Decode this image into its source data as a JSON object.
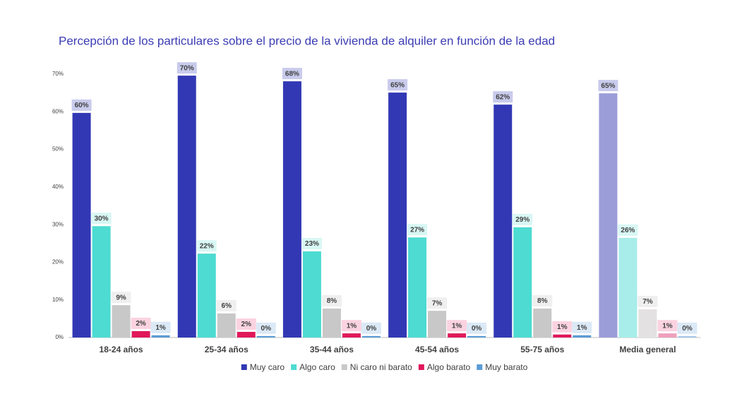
{
  "chart_data": {
    "type": "bar",
    "title": "Percepción de los particulares sobre el precio de la vivienda de alquiler en función de la edad",
    "categories": [
      "18-24 años",
      "25-34 años",
      "35-44 años",
      "45-54 años",
      "55-75 años",
      "Media general"
    ],
    "ylim": [
      0,
      70
    ],
    "yticks": [
      {
        "value": 0,
        "label": "0%"
      },
      {
        "value": 10,
        "label": "10%"
      },
      {
        "value": 20,
        "label": "20%"
      },
      {
        "value": 30,
        "label": "30%"
      },
      {
        "value": 40,
        "label": "40%"
      },
      {
        "value": 50,
        "label": "50%"
      },
      {
        "value": 60,
        "label": "60%"
      },
      {
        "value": 70,
        "label": "70%"
      }
    ],
    "grid": false,
    "legend": "bottom",
    "series": [
      {
        "name": "Muy caro",
        "color": "#3238b4",
        "colors": [
          "#3238b4",
          "#3238b4",
          "#3238b4",
          "#3238b4",
          "#3238b4",
          "#9b9dd9"
        ],
        "label_background": "#c9cbec",
        "values": [
          59.7,
          69.6,
          68.1,
          65.1,
          61.9,
          64.9
        ],
        "value_labels": [
          "60%",
          "70%",
          "68%",
          "65%",
          "62%",
          "65%"
        ]
      },
      {
        "name": "Algo caro",
        "color": "#4ddbd2",
        "colors": [
          "#4ddbd2",
          "#4ddbd2",
          "#4ddbd2",
          "#4ddbd2",
          "#4ddbd2",
          "#a8ede9"
        ],
        "label_background": "#d8f7f4",
        "values": [
          29.6,
          22.3,
          22.9,
          26.6,
          29.3,
          26.5
        ],
        "value_labels": [
          "30%",
          "22%",
          "23%",
          "27%",
          "29%",
          "26%"
        ]
      },
      {
        "name": "Ni caro ni barato",
        "color": "#c8c8c8",
        "colors": [
          "#c8c8c8",
          "#c8c8c8",
          "#c8c8c8",
          "#c8c8c8",
          "#c8c8c8",
          "#e3e1e1"
        ],
        "label_background": "#efefef",
        "values": [
          8.6,
          6.4,
          7.7,
          7.1,
          7.7,
          7.5
        ],
        "value_labels": [
          "9%",
          "6%",
          "8%",
          "7%",
          "8%",
          "7%"
        ]
      },
      {
        "name": "Algo barato",
        "color": "#e0185a",
        "colors": [
          "#e0185a",
          "#e0185a",
          "#e0185a",
          "#e0185a",
          "#e0185a",
          "#eea0bc"
        ],
        "label_background": "#fbd3e0",
        "values": [
          1.7,
          1.5,
          1.1,
          1.1,
          0.8,
          1.1
        ],
        "value_labels": [
          "2%",
          "2%",
          "1%",
          "1%",
          "1%",
          "1%"
        ]
      },
      {
        "name": "Muy barato",
        "color": "#5b9bd5",
        "colors": [
          "#5b9bd5",
          "#5b9bd5",
          "#5b9bd5",
          "#5b9bd5",
          "#5b9bd5",
          "#a9c9ea"
        ],
        "label_background": "#dbe9f6",
        "values": [
          0.6,
          0.4,
          0.4,
          0.4,
          0.6,
          0.4
        ],
        "value_labels": [
          "1%",
          "0%",
          "0%",
          "0%",
          "1%",
          "0%"
        ]
      }
    ]
  }
}
